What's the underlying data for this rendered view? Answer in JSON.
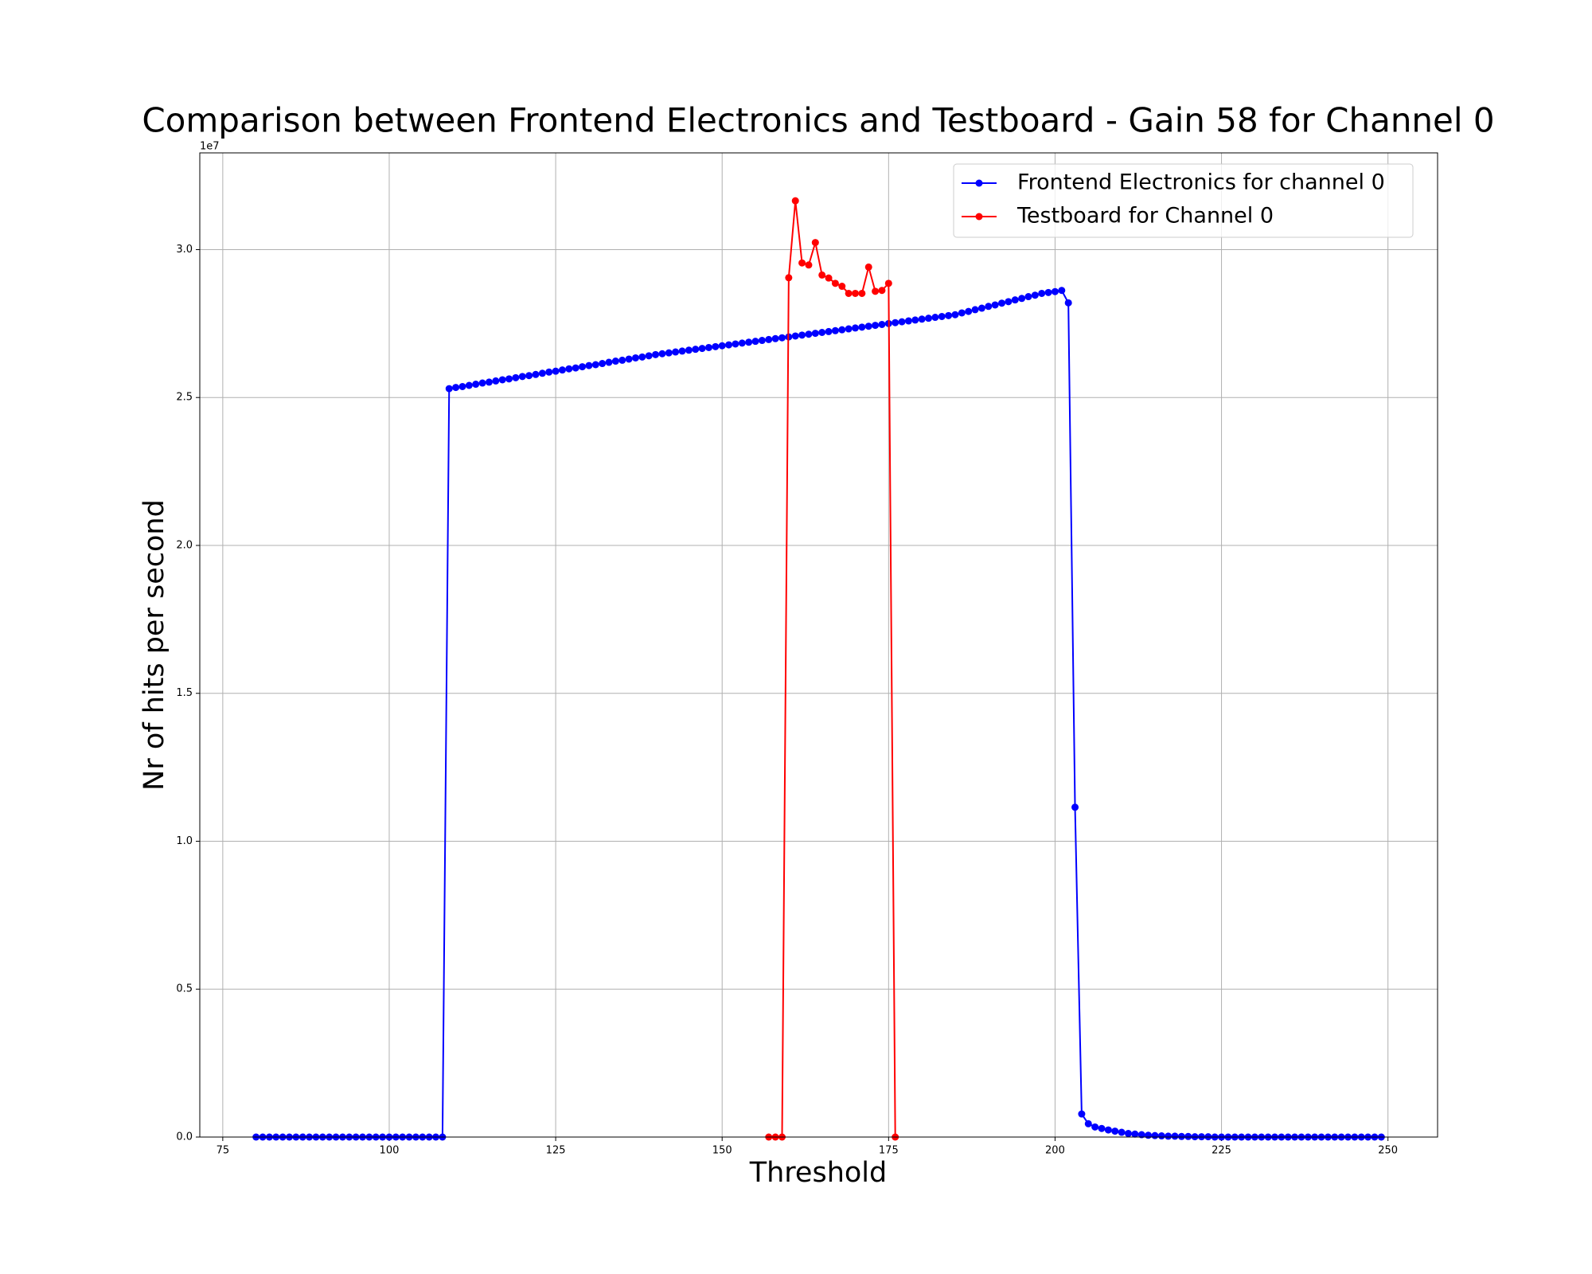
{
  "chart_data": {
    "type": "line",
    "title": "Comparison between Frontend Electronics and Testboard - Gain 58 for Channel 0",
    "x_label": "Threshold",
    "y_label": "Nr of hits per second",
    "y_offset_label": "1e7",
    "xlim": [
      71.55,
      257.45
    ],
    "ylim": [
      0,
      33270000
    ],
    "xticks": [
      75,
      100,
      125,
      150,
      175,
      200,
      225,
      250
    ],
    "yticks": [
      {
        "value": 0,
        "label": "0.0"
      },
      {
        "value": 5000000,
        "label": "0.5"
      },
      {
        "value": 10000000,
        "label": "1.0"
      },
      {
        "value": 15000000,
        "label": "1.5"
      },
      {
        "value": 20000000,
        "label": "2.0"
      },
      {
        "value": 25000000,
        "label": "2.5"
      },
      {
        "value": 30000000,
        "label": "3.0"
      }
    ],
    "grid": true,
    "legend": "upper right",
    "series": [
      {
        "name": "Frontend Electronics for channel 0",
        "color": "#0000ff",
        "x": [
          80,
          81,
          82,
          83,
          84,
          85,
          86,
          87,
          88,
          89,
          90,
          91,
          92,
          93,
          94,
          95,
          96,
          97,
          98,
          99,
          100,
          101,
          102,
          103,
          104,
          105,
          106,
          107,
          108,
          109,
          110,
          111,
          112,
          113,
          114,
          115,
          116,
          117,
          118,
          119,
          120,
          121,
          122,
          123,
          124,
          125,
          126,
          127,
          128,
          129,
          130,
          131,
          132,
          133,
          134,
          135,
          136,
          137,
          138,
          139,
          140,
          141,
          142,
          143,
          144,
          145,
          146,
          147,
          148,
          149,
          150,
          151,
          152,
          153,
          154,
          155,
          156,
          157,
          158,
          159,
          160,
          161,
          162,
          163,
          164,
          165,
          166,
          167,
          168,
          169,
          170,
          171,
          172,
          173,
          174,
          175,
          176,
          177,
          178,
          179,
          180,
          181,
          182,
          183,
          184,
          185,
          186,
          187,
          188,
          189,
          190,
          191,
          192,
          193,
          194,
          195,
          196,
          197,
          198,
          199,
          200,
          201,
          202,
          203,
          204,
          205,
          206,
          207,
          208,
          209,
          210,
          211,
          212,
          213,
          214,
          215,
          216,
          217,
          218,
          219,
          220,
          221,
          222,
          223,
          224,
          225,
          226,
          227,
          228,
          229,
          230,
          231,
          232,
          233,
          234,
          235,
          236,
          237,
          238,
          239,
          240,
          241,
          242,
          243,
          244,
          245,
          246,
          247,
          248,
          249
        ],
        "values": [
          0,
          0,
          0,
          0,
          0,
          0,
          0,
          0,
          0,
          0,
          0,
          0,
          0,
          0,
          0,
          0,
          0,
          0,
          0,
          0,
          0,
          0,
          0,
          0,
          0,
          0,
          0,
          0,
          0,
          25300000,
          25340000,
          25370000,
          25410000,
          25450000,
          25490000,
          25520000,
          25560000,
          25600000,
          25630000,
          25670000,
          25710000,
          25740000,
          25780000,
          25820000,
          25860000,
          25890000,
          25930000,
          25970000,
          26000000,
          26040000,
          26080000,
          26110000,
          26150000,
          26190000,
          26230000,
          26260000,
          26300000,
          26340000,
          26370000,
          26410000,
          26450000,
          26480000,
          26510000,
          26540000,
          26570000,
          26600000,
          26630000,
          26660000,
          26690000,
          26720000,
          26750000,
          26780000,
          26810000,
          26840000,
          26870000,
          26900000,
          26930000,
          26960000,
          26990000,
          27020000,
          27050000,
          27080000,
          27110000,
          27140000,
          27170000,
          27200000,
          27230000,
          27260000,
          27290000,
          27320000,
          27350000,
          27380000,
          27410000,
          27440000,
          27470000,
          27500000,
          27530000,
          27560000,
          27590000,
          27620000,
          27650000,
          27680000,
          27710000,
          27740000,
          27770000,
          27800000,
          27860000,
          27910000,
          27970000,
          28020000,
          28080000,
          28130000,
          28190000,
          28240000,
          28300000,
          28350000,
          28410000,
          28460000,
          28520000,
          28550000,
          28580000,
          28620000,
          28200000,
          11150000,
          780000,
          450000,
          340000,
          290000,
          240000,
          200000,
          160000,
          120000,
          100000,
          80000,
          60000,
          50000,
          40000,
          30000,
          30000,
          20000,
          20000,
          10000,
          10000,
          10000,
          0,
          0,
          0,
          0,
          0,
          0,
          0,
          0,
          0,
          0,
          0,
          0,
          0,
          0,
          0,
          0,
          0,
          0,
          0,
          0,
          0,
          0,
          0,
          0,
          0,
          0
        ]
      },
      {
        "name": "Testboard for Channel 0",
        "color": "#ff0000",
        "x": [
          157,
          158,
          159,
          160,
          161,
          162,
          163,
          164,
          165,
          166,
          167,
          168,
          169,
          170,
          171,
          172,
          173,
          174,
          175,
          176
        ],
        "values": [
          0,
          0,
          0,
          29050000,
          31650000,
          29550000,
          29480000,
          30240000,
          29140000,
          29040000,
          28860000,
          28760000,
          28520000,
          28520000,
          28520000,
          29410000,
          28590000,
          28620000,
          28860000,
          0
        ]
      }
    ]
  }
}
